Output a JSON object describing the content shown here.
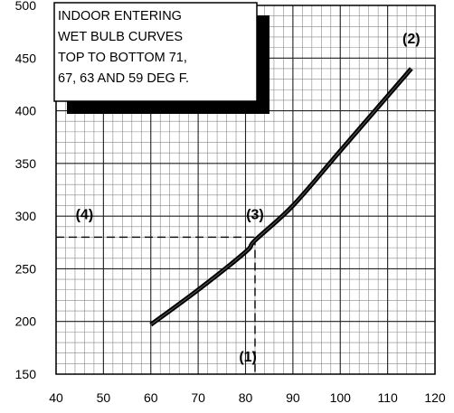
{
  "chart_data": {
    "type": "line",
    "title": "",
    "xlabel": "",
    "ylabel": "",
    "xlim": [
      40,
      120
    ],
    "ylim": [
      150,
      500
    ],
    "x_ticks": [
      40,
      50,
      60,
      70,
      80,
      90,
      100,
      110,
      120
    ],
    "y_ticks": [
      150,
      200,
      250,
      300,
      350,
      400,
      450,
      500
    ],
    "grid": true,
    "series": [
      {
        "x": [
          60,
          70,
          80,
          82,
          90,
          100,
          110,
          115
        ],
        "y": [
          197,
          230,
          266,
          277,
          310,
          362,
          414,
          440
        ],
        "color": "#000000"
      }
    ],
    "reference_lines": {
      "x": 82,
      "y": 280
    },
    "annotations": [
      {
        "id": "marker-1",
        "text": "(1)",
        "x": 80.5,
        "y": 162
      },
      {
        "id": "marker-2",
        "text": "(2)",
        "x": 115,
        "y": 464
      },
      {
        "id": "marker-3",
        "text": "(3)",
        "x": 82,
        "y": 297
      },
      {
        "id": "marker-4",
        "text": "(4)",
        "x": 46,
        "y": 297
      }
    ],
    "note": {
      "lines": [
        "INDOOR ENTERING",
        "WET BULB CURVES",
        "TOP TO BOTTOM 71,",
        "67, 63 AND 59 DEG F."
      ]
    }
  }
}
